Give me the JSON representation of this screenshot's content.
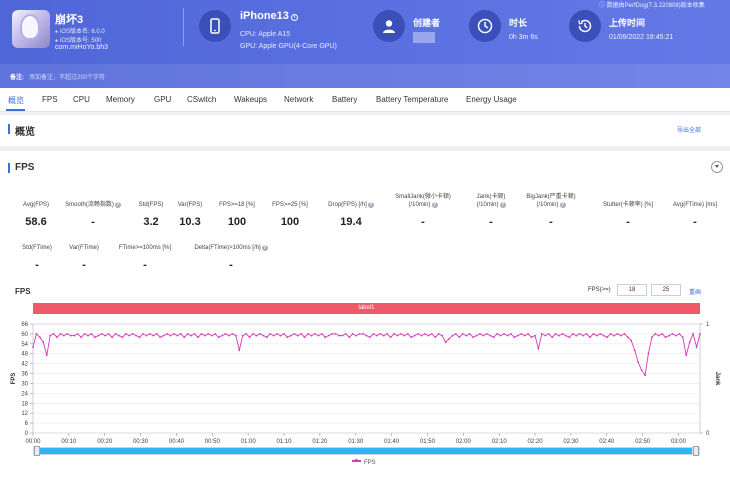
{
  "header": {
    "app_name": "崩坏3",
    "ios_version": "iOS版本名: 6.0.0",
    "app_version": "iOS版本号: 500",
    "package": "com.miHoYo.bh3",
    "device_name": "iPhone13",
    "cpu": "CPU: Apple A15",
    "gpu": "GPU: Apple GPU(4-Core GPU)",
    "creator_label": "创建者",
    "duration_label": "时长",
    "duration_value": "0h 3m 6s",
    "upload_label": "上传时间",
    "upload_value": "01/09/2022 18:45:21",
    "source_note": "数据由PerfDog(7.3.220808)版本收集",
    "note_label": "备注:",
    "note_placeholder": "添加备注，不超过200个字符",
    "icons": [
      "app-icon",
      "phone-icon",
      "user-icon",
      "clock-icon",
      "history-icon"
    ]
  },
  "tabs": [
    "概览",
    "FPS",
    "CPU",
    "Memory",
    "GPU",
    "CSwitch",
    "Wakeups",
    "Network",
    "Battery",
    "Battery Temperature",
    "Energy Usage"
  ],
  "active_tab": "概览",
  "overview": {
    "title": "概览",
    "export_label": "导出全部"
  },
  "fps_section": {
    "title": "FPS",
    "metrics_row1": [
      {
        "label": "Avg(FPS)",
        "value": "58.6",
        "help": false
      },
      {
        "label": "Smooth(流畅指数)",
        "value": "-",
        "help": true
      },
      {
        "label": "Std(FPS)",
        "value": "3.2",
        "help": false
      },
      {
        "label": "Var(FPS)",
        "value": "10.3",
        "help": false
      },
      {
        "label": "FPS>=18 [%]",
        "value": "100",
        "help": false
      },
      {
        "label": "FPS>=25 [%]",
        "value": "100",
        "help": false
      },
      {
        "label": "Drop(FPS) [/h]",
        "value": "19.4",
        "help": true
      },
      {
        "label": "SmallJank(微小卡顿) (/10min)",
        "value": "-",
        "help": true
      },
      {
        "label": "Jank(卡顿) (/10min)",
        "value": "-",
        "help": true
      },
      {
        "label": "BigJank(严重卡顿) (/10min)",
        "value": "-",
        "help": true
      },
      {
        "label": "Stutter(卡顿率) [%]",
        "value": "-",
        "help": false
      },
      {
        "label": "Avg(FTime) [ms]",
        "value": "-",
        "help": false
      }
    ],
    "metrics_row2": [
      {
        "label": "Std(FTime)",
        "value": "-",
        "help": false
      },
      {
        "label": "Var(FTime)",
        "value": "-",
        "help": false
      },
      {
        "label": "FTime>=100ms [%]",
        "value": "-",
        "help": false
      },
      {
        "label": "Delta(FTime)>100ms [/h]",
        "value": "-",
        "help": true
      }
    ],
    "chart_title": "FPS",
    "threshold_label": "FPS(>=)",
    "threshold_values": [
      "18",
      "25"
    ],
    "redraw_label": "重画",
    "label_bar": "label1"
  },
  "chart_data": {
    "type": "line",
    "title": "FPS",
    "xlabel": "",
    "ylabel": "FPS",
    "y2label": "Jank",
    "ylim": [
      0,
      66
    ],
    "y2lim": [
      0,
      1
    ],
    "yticks": [
      "0",
      "6",
      "12",
      "18",
      "24",
      "30",
      "36",
      "42",
      "48",
      "54",
      "60",
      "66"
    ],
    "y2ticks": [
      "0",
      "1"
    ],
    "xticks": [
      "00:00",
      "00:10",
      "00:20",
      "00:30",
      "00:40",
      "00:50",
      "01:00",
      "01:10",
      "01:20",
      "01:30",
      "01:40",
      "01:50",
      "02:00",
      "02:10",
      "02:20",
      "02:30",
      "02:40",
      "02:50",
      "03:00"
    ],
    "x_range_seconds": [
      0,
      186
    ],
    "grid": true,
    "legend": "bottom-center",
    "series": [
      {
        "name": "FPS",
        "color": "#d63bb8",
        "values": [
          52,
          60,
          58,
          55,
          47,
          59,
          60,
          58,
          60,
          59,
          60,
          59,
          59,
          60,
          58,
          60,
          59,
          60,
          58,
          59,
          60,
          59,
          60,
          58,
          60,
          59,
          58,
          60,
          59,
          60,
          59,
          58,
          60,
          59,
          60,
          59,
          60,
          58,
          59,
          60,
          59,
          60,
          59,
          60,
          58,
          60,
          59,
          60,
          58,
          60,
          59,
          60,
          59,
          60,
          58,
          59,
          60,
          59,
          60,
          59,
          50,
          59,
          60,
          58,
          60,
          59,
          60,
          59,
          58,
          60,
          59,
          60,
          59,
          60,
          58,
          59,
          60,
          59,
          60,
          58,
          60,
          59,
          60,
          59,
          60,
          58,
          59,
          60,
          60,
          59,
          59,
          60,
          58,
          60,
          59,
          60,
          60,
          59,
          58,
          60,
          59,
          60,
          59,
          60,
          58,
          60,
          59,
          60,
          59,
          60,
          58,
          59,
          60,
          59,
          60,
          59,
          60,
          58,
          60,
          59,
          55,
          57,
          59,
          60,
          58,
          60,
          59,
          60,
          58,
          59,
          60,
          59,
          60,
          59,
          58,
          60,
          59,
          60,
          59,
          60,
          58,
          59,
          60,
          59,
          60,
          58,
          59,
          51,
          60,
          59,
          60,
          58,
          60,
          59,
          60,
          59,
          58,
          60,
          59,
          60,
          59,
          60,
          58,
          60,
          59,
          60,
          59,
          58,
          60,
          59,
          60,
          59,
          60,
          58,
          56,
          50,
          43,
          38,
          35,
          48,
          58,
          60,
          59,
          60,
          58,
          59,
          60,
          59,
          60,
          58,
          47,
          55,
          60,
          52,
          60
        ]
      }
    ]
  }
}
